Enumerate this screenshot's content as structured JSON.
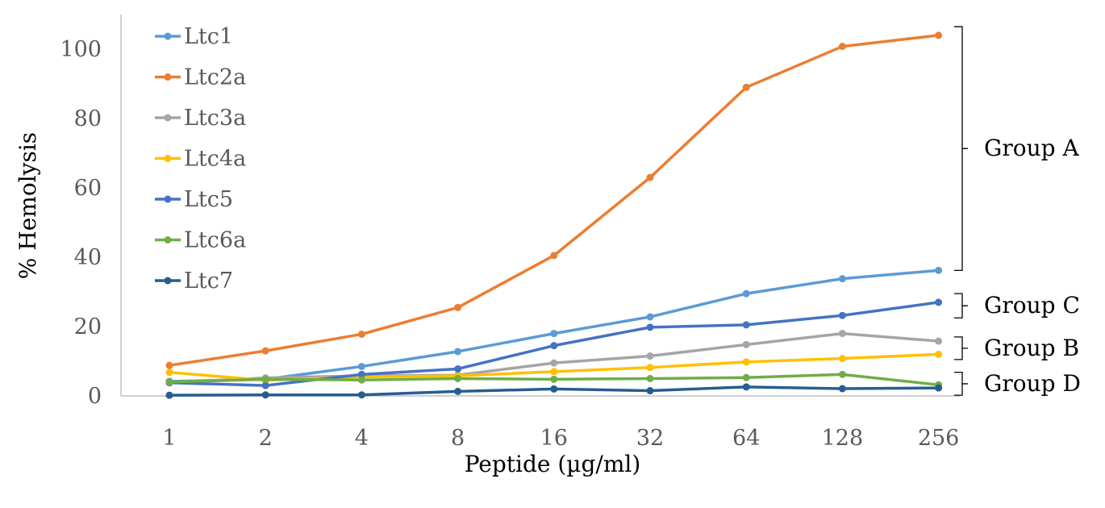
{
  "chart_data": {
    "type": "line",
    "title": "",
    "xlabel": "Peptide (µg/ml)",
    "ylabel": "% Hemolysis",
    "categories": [
      "1",
      "2",
      "4",
      "8",
      "16",
      "32",
      "64",
      "128",
      "256"
    ],
    "ylim": [
      0,
      110
    ],
    "yticks": [
      0,
      20,
      40,
      60,
      80,
      100
    ],
    "grid": false,
    "legend_position": "top-left",
    "series": [
      {
        "name": "Ltc1",
        "color": "#5B9BD5",
        "values": [
          4.2,
          4.8,
          8.5,
          12.8,
          18.0,
          22.8,
          29.5,
          33.8,
          36.2
        ]
      },
      {
        "name": "Ltc2a",
        "color": "#ED7D31",
        "values": [
          8.8,
          13.0,
          17.8,
          25.5,
          40.5,
          63.0,
          89.0,
          100.8,
          104.0
        ]
      },
      {
        "name": "Ltc3a",
        "color": "#A5A5A5",
        "values": [
          3.8,
          5.2,
          5.8,
          6.0,
          9.5,
          11.5,
          14.8,
          18.0,
          15.8
        ]
      },
      {
        "name": "Ltc4a",
        "color": "#FFC000",
        "values": [
          6.8,
          4.5,
          5.5,
          5.8,
          7.0,
          8.2,
          9.8,
          10.8,
          12.0
        ]
      },
      {
        "name": "Ltc5",
        "color": "#4472C4",
        "values": [
          3.8,
          3.0,
          6.2,
          7.8,
          14.5,
          19.8,
          20.5,
          23.2,
          27.0
        ]
      },
      {
        "name": "Ltc6a",
        "color": "#70AD47",
        "values": [
          4.0,
          4.8,
          4.6,
          5.0,
          4.8,
          5.0,
          5.3,
          6.2,
          3.2
        ]
      },
      {
        "name": "Ltc7",
        "color": "#255E91",
        "values": [
          0.2,
          0.3,
          0.3,
          1.3,
          2.0,
          1.5,
          2.6,
          2.1,
          2.3
        ]
      }
    ],
    "annotations": [
      {
        "label": "Group A",
        "range": [
          36.2,
          106.5
        ]
      },
      {
        "label": "Group C",
        "range": [
          22.5,
          29.5
        ]
      },
      {
        "label": "Group B",
        "range": [
          10.5,
          17.0
        ]
      },
      {
        "label": "Group D",
        "range": [
          0.2,
          6.8
        ]
      }
    ]
  }
}
